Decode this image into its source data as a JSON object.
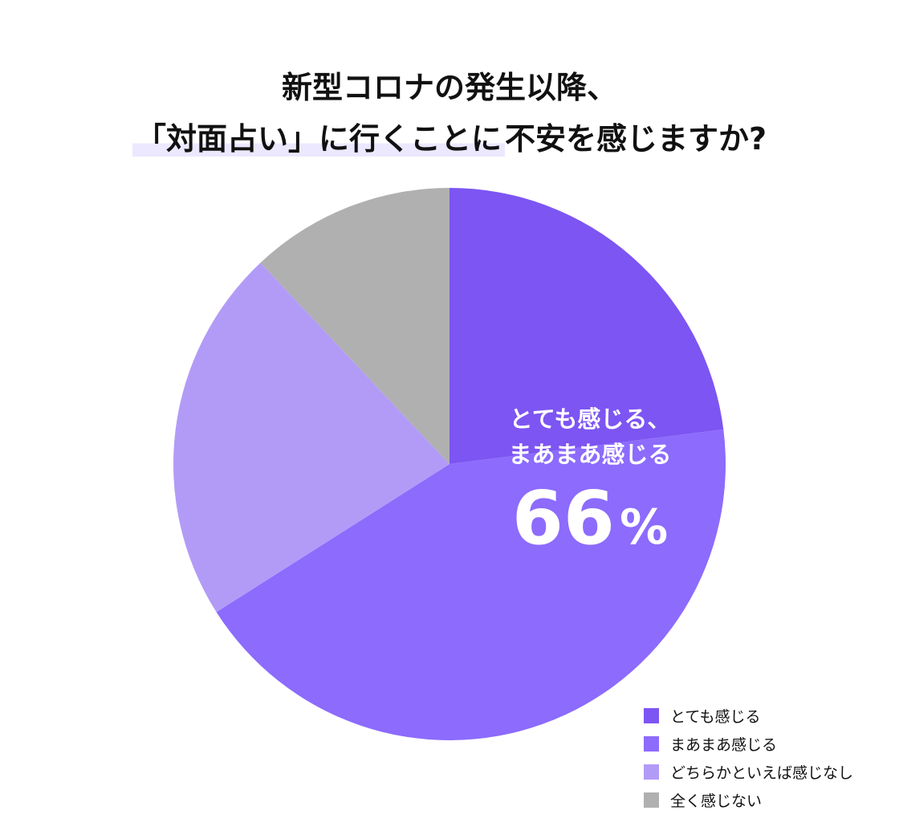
{
  "title": {
    "line1": "新型コロナの発生以降、",
    "line2_highlight": "「対面占い」に行くことに",
    "line2_rest": "不安を感じますか?"
  },
  "annotation": {
    "line1": "とても感じる、",
    "line2": "まあまあ感じる",
    "value": "66",
    "unit": "%"
  },
  "chart_data": {
    "type": "pie",
    "start": "12 o'clock",
    "direction": "clockwise",
    "slices": [
      {
        "label": "とても感じる",
        "value": 23,
        "color": "#7d55f2"
      },
      {
        "label": "まあまあ感じる",
        "value": 43,
        "color": "#8c6bfd"
      },
      {
        "label": "どちらかといえば感じなし",
        "value": 22,
        "color": "#b29bf7"
      },
      {
        "label": "全く感じない",
        "value": 12,
        "color": "#b0b0b0"
      }
    ],
    "legend_position": "bottom-right"
  }
}
